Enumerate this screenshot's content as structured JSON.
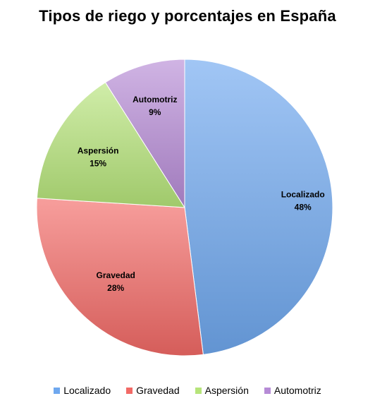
{
  "chart_data": {
    "type": "pie",
    "title": "Tipos de riego y porcentajes en España",
    "categories": [
      "Localizado",
      "Gravedad",
      "Aspersión",
      "Automotriz"
    ],
    "values": [
      48,
      28,
      15,
      9
    ],
    "value_labels": [
      "48%",
      "28%",
      "15%",
      "9%"
    ],
    "colors": [
      "#6fa8ef",
      "#f26a66",
      "#b6e47a",
      "#b68bd6"
    ],
    "start_angle_deg": 0,
    "direction": "clockwise",
    "legend": {
      "position": "bottom",
      "entries": [
        "Localizado",
        "Gravedad",
        "Aspersión",
        "Automotriz"
      ]
    }
  }
}
